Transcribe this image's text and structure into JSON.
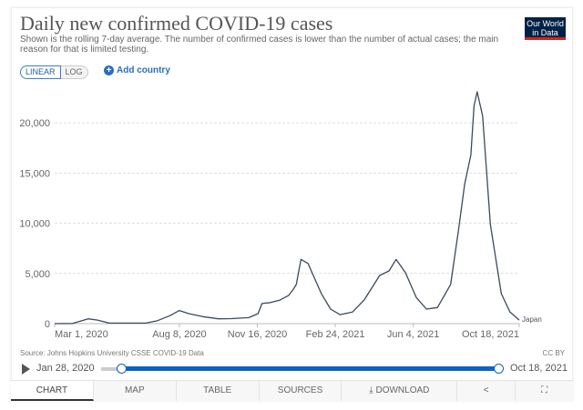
{
  "header": {
    "title": "Daily new confirmed COVID-19 cases",
    "subtitle": "Shown is the rolling 7-day average. The number of confirmed cases is lower than the number of actual cases; the main reason for that is limited testing.",
    "logo": "Our World in Data"
  },
  "controls": {
    "linear": "LINEAR",
    "log": "LOG",
    "add_country": "Add country"
  },
  "chart_data": {
    "type": "line",
    "title": "Daily new confirmed COVID-19 cases",
    "ylim": [
      0,
      23500
    ],
    "yticks": [
      0,
      5000,
      10000,
      15000,
      20000
    ],
    "ytick_labels": [
      "0",
      "5,000",
      "10,000",
      "15,000",
      "20,000"
    ],
    "xlim": [
      "2020-03-01",
      "2021-10-18"
    ],
    "xticks": [
      "2020-03-01",
      "2020-08-08",
      "2020-11-16",
      "2021-02-24",
      "2021-06-04",
      "2021-10-18"
    ],
    "xtick_labels": [
      "Mar 1, 2020",
      "Aug 8, 2020",
      "Nov 16, 2020",
      "Feb 24, 2021",
      "Jun 4, 2021",
      "Oct 18, 2021"
    ],
    "grid": "horizontal dashed",
    "series": [
      {
        "name": "Japan",
        "color": "#3b4a5a",
        "x": [
          "2020-03-01",
          "2020-03-24",
          "2020-04-13",
          "2020-04-25",
          "2020-05-10",
          "2020-06-26",
          "2020-07-11",
          "2020-07-27",
          "2020-08-08",
          "2020-08-20",
          "2020-09-07",
          "2020-09-27",
          "2020-10-13",
          "2020-11-05",
          "2020-11-17",
          "2020-11-22",
          "2020-12-03",
          "2020-12-15",
          "2020-12-26",
          "2021-01-01",
          "2021-01-05",
          "2021-01-11",
          "2021-01-20",
          "2021-02-06",
          "2021-02-18",
          "2021-03-02",
          "2021-03-18",
          "2021-04-02",
          "2021-04-22",
          "2021-05-04",
          "2021-05-13",
          "2021-05-25",
          "2021-06-08",
          "2021-06-21",
          "2021-07-05",
          "2021-07-22",
          "2021-08-01",
          "2021-08-09",
          "2021-08-17",
          "2021-08-21",
          "2021-08-25",
          "2021-09-01",
          "2021-09-11",
          "2021-09-25",
          "2021-10-06",
          "2021-10-18"
        ],
        "values": [
          0,
          20,
          480,
          350,
          50,
          50,
          300,
          800,
          1300,
          1000,
          700,
          480,
          500,
          600,
          1000,
          2000,
          2100,
          2350,
          2800,
          3400,
          3900,
          6400,
          6000,
          3000,
          1450,
          900,
          1150,
          2350,
          4800,
          5250,
          6400,
          5070,
          2600,
          1450,
          1600,
          3900,
          9300,
          13900,
          16800,
          21700,
          23100,
          20700,
          9900,
          3000,
          1180,
          350
        ]
      }
    ]
  },
  "footer": {
    "source": "Source: Johns Hopkins University CSSE COVID-19 Data",
    "license": "CC BY",
    "start_date": "Jan 28, 2020",
    "end_date": "Oct 18, 2021"
  },
  "tabs": [
    "CHART",
    "MAP",
    "TABLE",
    "SOURCES",
    "DOWNLOAD"
  ]
}
